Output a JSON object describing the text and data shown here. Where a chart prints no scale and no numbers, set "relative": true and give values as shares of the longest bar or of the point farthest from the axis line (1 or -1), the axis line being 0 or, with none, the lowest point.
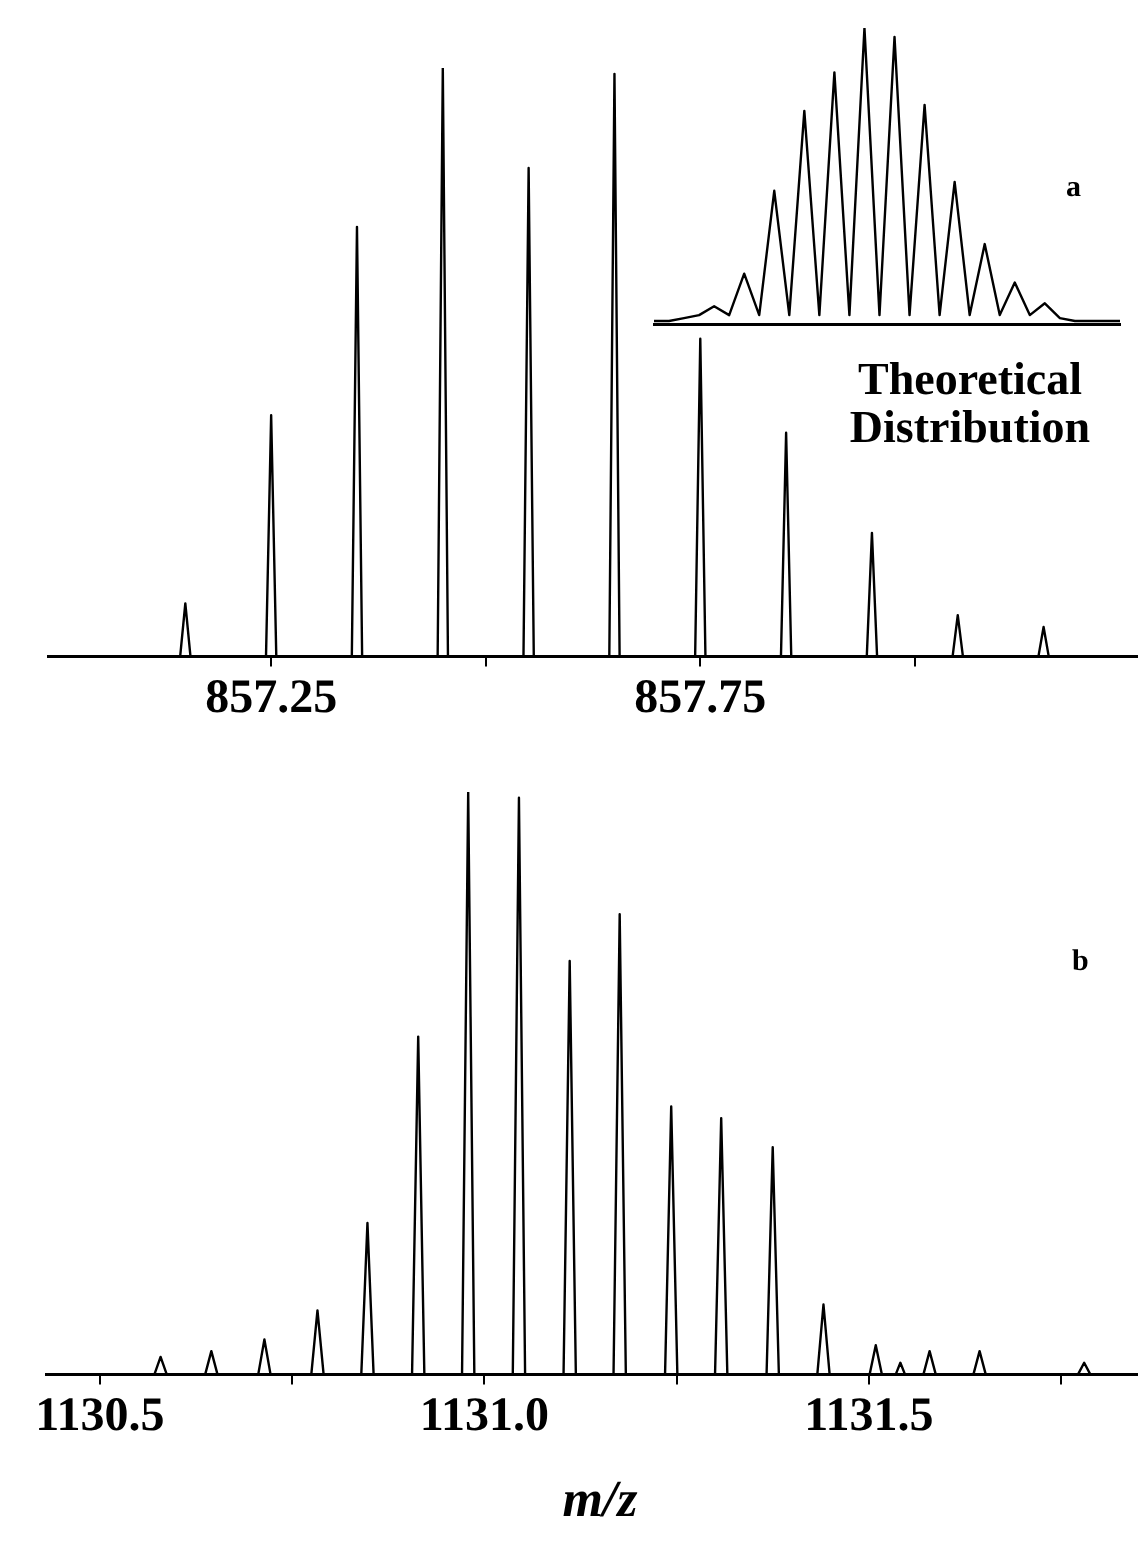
{
  "chart_data": [
    {
      "type": "line",
      "title": "a",
      "relative": true,
      "tick_labels": "x",
      "marker": "none",
      "xlim": [
        856.99,
        858.26
      ],
      "xticks": [
        857.25,
        {
          "value": 857.5,
          "label": null
        },
        857.75,
        {
          "value": 858.0,
          "label": null
        }
      ],
      "series": [
        {
          "color": "#000000",
          "x": [
            856.99,
            857.144,
            857.15,
            857.156,
            857.244,
            857.25,
            857.256,
            857.344,
            857.35,
            857.356,
            857.444,
            857.45,
            857.456,
            857.544,
            857.55,
            857.556,
            857.644,
            857.65,
            857.656,
            857.744,
            857.75,
            857.756,
            857.844,
            857.85,
            857.856,
            857.944,
            857.95,
            857.956,
            858.044,
            858.05,
            858.056,
            858.144,
            858.15,
            858.156,
            858.26
          ],
          "values": [
            0,
            0,
            0.09,
            0,
            0,
            0.41,
            0,
            0,
            0.73,
            0,
            0,
            1,
            0,
            0,
            0.83,
            0,
            0,
            0.99,
            0,
            0,
            0.54,
            0,
            0,
            0.38,
            0,
            0,
            0.21,
            0,
            0,
            0.07,
            0,
            0,
            0.05,
            0,
            0
          ]
        }
      ]
    },
    {
      "type": "line",
      "xlabel": "Theoretical Distribution",
      "relative": true,
      "tick_labels": false,
      "marker": "none",
      "categories": [
        null,
        null,
        null,
        null,
        null,
        null,
        null,
        null,
        null,
        null,
        null,
        null,
        null,
        null,
        null,
        null,
        null,
        null,
        null,
        null,
        null,
        null,
        null,
        null,
        null,
        null,
        null,
        null,
        null,
        null,
        null,
        null
      ],
      "series": [
        {
          "color": "#000000",
          "values": [
            0.01,
            0.01,
            0.02,
            0.03,
            0.06,
            0.03,
            0.17,
            0.03,
            0.45,
            0.03,
            0.72,
            0.03,
            0.85,
            0.03,
            1,
            0.03,
            0.97,
            0.03,
            0.74,
            0.03,
            0.48,
            0.03,
            0.27,
            0.03,
            0.14,
            0.03,
            0.07,
            0.02,
            0.01,
            0.01,
            0.01,
            0.01
          ]
        }
      ]
    },
    {
      "type": "line",
      "title": "b",
      "xlabel": "m/z",
      "relative": true,
      "tick_labels": "x",
      "marker": "none",
      "xlim": [
        1130.43,
        1131.85
      ],
      "xticks": [
        1130.5,
        {
          "value": 1130.75,
          "label": null
        },
        {
          "value": 1131.0,
          "label": "1131.0"
        },
        {
          "value": 1131.25,
          "label": null
        },
        1131.5,
        {
          "value": 1131.75,
          "label": null
        }
      ],
      "series": [
        {
          "color": "#000000",
          "x": [
            1130.43,
            1130.571,
            1130.579,
            1130.587,
            1130.637,
            1130.645,
            1130.653,
            1130.706,
            1130.714,
            1130.722,
            1130.775,
            1130.783,
            1130.791,
            1130.84,
            1130.848,
            1130.856,
            1130.906,
            1130.914,
            1130.922,
            1130.971,
            1130.979,
            1130.987,
            1131.037,
            1131.045,
            1131.053,
            1131.103,
            1131.111,
            1131.119,
            1131.168,
            1131.176,
            1131.184,
            1131.235,
            1131.243,
            1131.251,
            1131.3,
            1131.308,
            1131.316,
            1131.367,
            1131.375,
            1131.383,
            1131.433,
            1131.441,
            1131.449,
            1131.501,
            1131.509,
            1131.517,
            1131.535,
            1131.541,
            1131.547,
            1131.571,
            1131.579,
            1131.587,
            1131.636,
            1131.644,
            1131.652,
            1131.772,
            1131.78,
            1131.788,
            1131.85
          ],
          "values": [
            0,
            0,
            0.03,
            0,
            0,
            0.04,
            0,
            0,
            0.06,
            0,
            0,
            0.11,
            0,
            0,
            0.26,
            0,
            0,
            0.58,
            0,
            0,
            1,
            0,
            0,
            0.99,
            0,
            0,
            0.71,
            0,
            0,
            0.79,
            0,
            0,
            0.46,
            0,
            0,
            0.44,
            0,
            0,
            0.39,
            0,
            0,
            0.12,
            0,
            0,
            0.05,
            0,
            0,
            0.02,
            0,
            0,
            0.04,
            0,
            0,
            0.04,
            0,
            0,
            0.02,
            0,
            0
          ]
        }
      ]
    }
  ]
}
